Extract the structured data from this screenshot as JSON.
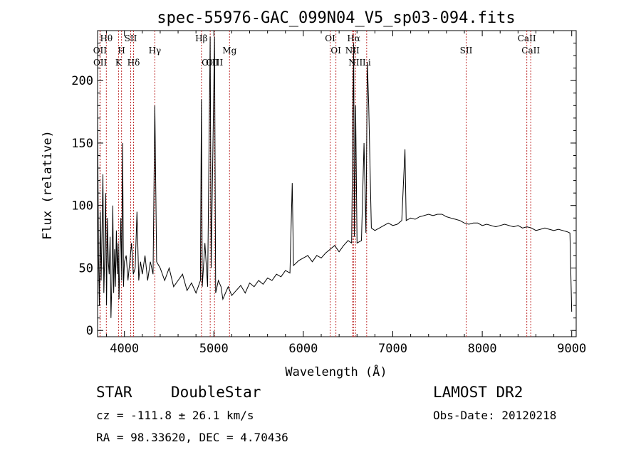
{
  "chart_data": {
    "type": "line",
    "title": "spec-55976-GAC_099N04_V5_sp03-094.fits",
    "xlabel": "Wavelength (Å)",
    "ylabel": "Flux (relative)",
    "xlim": [
      3700,
      9050
    ],
    "ylim": [
      -5,
      240
    ],
    "x_ticks": [
      4000,
      5000,
      6000,
      7000,
      8000,
      9000
    ],
    "x_tick_labels": [
      "4000",
      "5000",
      "6000",
      "7000",
      "8000",
      "9000"
    ],
    "y_ticks": [
      0,
      50,
      100,
      150,
      200
    ],
    "y_tick_labels": [
      "0",
      "50",
      "100",
      "150",
      "200"
    ],
    "grid": false,
    "series": [
      {
        "values_note": "",
        "x": [
          3700,
          3710,
          3720,
          3730,
          3740,
          3750,
          3760,
          3770,
          3780,
          3790,
          3800,
          3810,
          3820,
          3830,
          3840,
          3850,
          3860,
          3870,
          3880,
          3890,
          3900,
          3910,
          3920,
          3930,
          3940,
          3950,
          3960,
          3970,
          3980,
          3990,
          4000,
          4020,
          4040,
          4060,
          4080,
          4100,
          4120,
          4140,
          4160,
          4180,
          4200,
          4230,
          4260,
          4290,
          4320,
          4340,
          4360,
          4400,
          4450,
          4500,
          4550,
          4600,
          4650,
          4700,
          4750,
          4800,
          4850,
          4861,
          4870,
          4900,
          4930,
          4959,
          4970,
          5007,
          5020,
          5050,
          5080,
          5100,
          5130,
          5160,
          5200,
          5250,
          5300,
          5350,
          5400,
          5450,
          5500,
          5550,
          5600,
          5650,
          5700,
          5750,
          5800,
          5850,
          5876,
          5890,
          5950,
          6000,
          6050,
          6100,
          6150,
          6200,
          6250,
          6300,
          6350,
          6400,
          6450,
          6500,
          6540,
          6563,
          6570,
          6584,
          6600,
          6650,
          6678,
          6700,
          6716,
          6731,
          6760,
          6800,
          6850,
          6900,
          6950,
          7000,
          7050,
          7100,
          7136,
          7150,
          7200,
          7250,
          7300,
          7350,
          7400,
          7450,
          7500,
          7550,
          7600,
          7650,
          7700,
          7750,
          7800,
          7850,
          7900,
          7950,
          8000,
          8050,
          8100,
          8150,
          8200,
          8250,
          8300,
          8350,
          8400,
          8450,
          8500,
          8550,
          8600,
          8650,
          8700,
          8750,
          8800,
          8850,
          8900,
          8950,
          8980,
          9000
        ],
        "y": [
          175,
          60,
          20,
          95,
          40,
          80,
          125,
          30,
          60,
          110,
          20,
          90,
          55,
          45,
          75,
          10,
          40,
          100,
          30,
          65,
          35,
          80,
          45,
          70,
          25,
          60,
          90,
          40,
          150,
          35,
          55,
          60,
          40,
          55,
          70,
          45,
          50,
          95,
          40,
          55,
          45,
          60,
          40,
          55,
          45,
          180,
          55,
          50,
          40,
          50,
          35,
          40,
          45,
          32,
          38,
          30,
          40,
          185,
          35,
          70,
          35,
          235,
          50,
          235,
          30,
          40,
          35,
          25,
          30,
          35,
          28,
          32,
          36,
          30,
          38,
          35,
          40,
          37,
          42,
          40,
          45,
          43,
          48,
          46,
          118,
          52,
          56,
          58,
          60,
          55,
          60,
          58,
          62,
          65,
          68,
          63,
          68,
          72,
          70,
          230,
          75,
          180,
          70,
          72,
          150,
          78,
          215,
          180,
          82,
          80,
          82,
          84,
          86,
          84,
          85,
          88,
          145,
          88,
          90,
          89,
          91,
          92,
          93,
          92,
          93,
          93,
          91,
          90,
          89,
          88,
          86,
          85,
          86,
          86,
          84,
          85,
          84,
          83,
          84,
          85,
          84,
          83,
          84,
          82,
          83,
          82,
          80,
          81,
          82,
          81,
          80,
          81,
          80,
          79,
          78,
          15
        ]
      }
    ],
    "lines": [
      {
        "label": "Hθ",
        "x": 3798
      },
      {
        "label": "OII",
        "x": 3727
      },
      {
        "label": "OII",
        "x": 3729
      },
      {
        "label": "H",
        "x": 3968
      },
      {
        "label": "K",
        "x": 3934
      },
      {
        "label": "SII",
        "x": 4070
      },
      {
        "label": "Hδ",
        "x": 4102
      },
      {
        "label": "Hγ",
        "x": 4340
      },
      {
        "label": "Hβ",
        "x": 4861
      },
      {
        "label": "OIII",
        "x": 4959
      },
      {
        "label": "OIII",
        "x": 5007
      },
      {
        "label": "Mg",
        "x": 5175
      },
      {
        "label": "OI",
        "x": 6300
      },
      {
        "label": "OI",
        "x": 6364
      },
      {
        "label": "Hα",
        "x": 6563
      },
      {
        "label": "NII",
        "x": 6548
      },
      {
        "label": "NII",
        "x": 6584
      },
      {
        "label": "Li",
        "x": 6708
      },
      {
        "label": "SII",
        "x": 7820
      },
      {
        "label": "CaII",
        "x": 8498
      },
      {
        "label": "CaII",
        "x": 8542
      }
    ]
  },
  "footer": {
    "class_label": "STAR",
    "subclass_label": "DoubleStar",
    "survey_label": "LAMOST DR2",
    "cz_text": "cz = -111.8 ± 26.1 km/s",
    "obsdate_text": "Obs-Date: 20120218",
    "radec_text": "RA =  98.33620, DEC =   4.70436"
  },
  "colors": {
    "line_markers": "#c03030",
    "spectrum": "#000000"
  }
}
